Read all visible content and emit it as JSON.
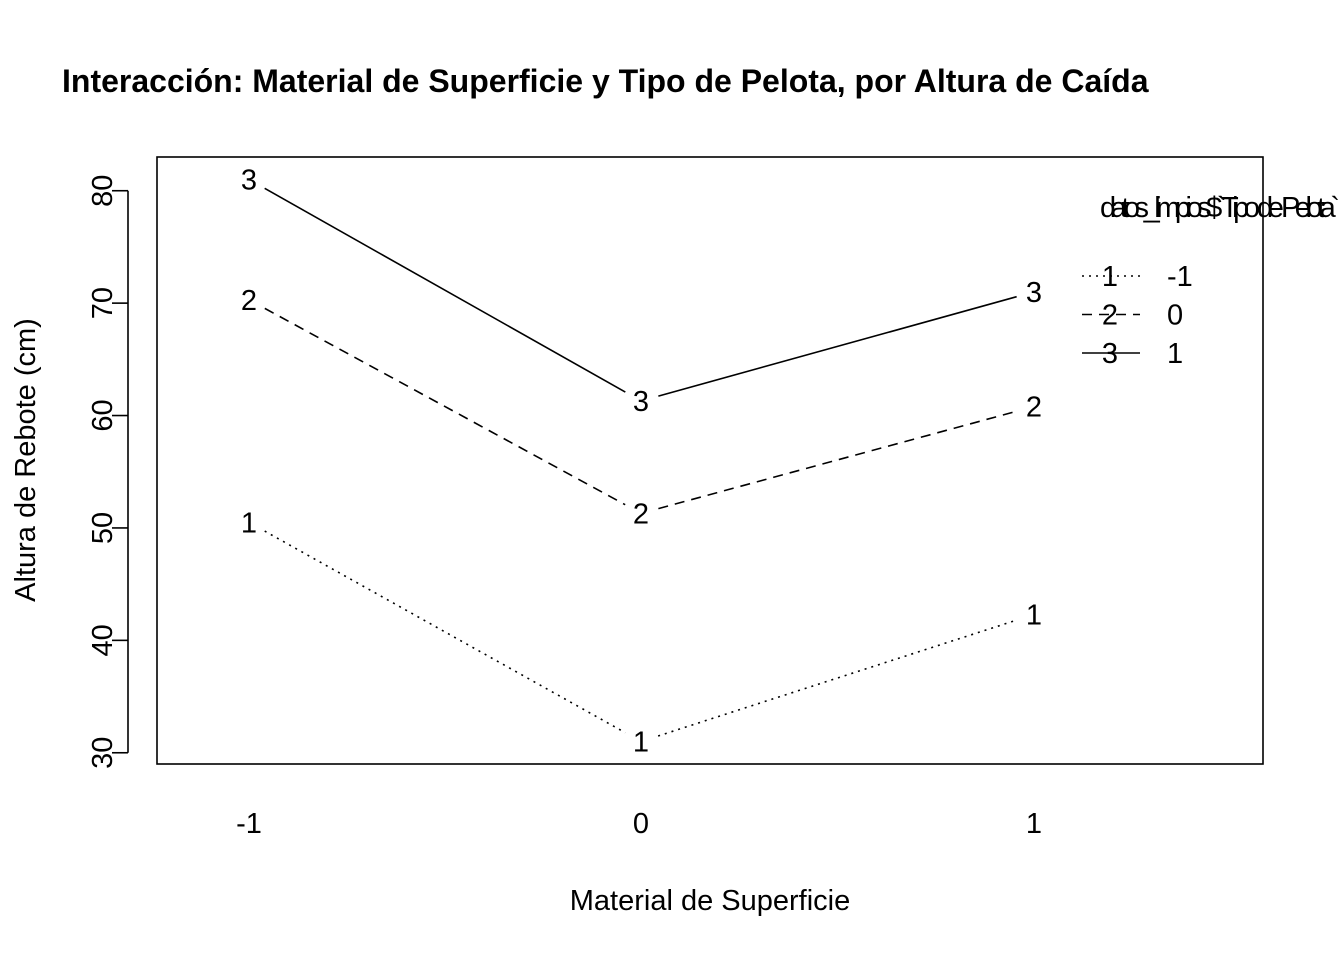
{
  "chart_data": {
    "type": "line",
    "title": "Interacción: Material de Superficie y Tipo de Pelota, por Altura de Caída",
    "xlabel": "Material de Superficie",
    "ylabel": "Altura de Rebote (cm)",
    "categories": [
      "-1",
      "0",
      "1"
    ],
    "ylim": [
      29,
      83
    ],
    "yticks": [
      30,
      40,
      50,
      60,
      70,
      80
    ],
    "ytick_labels": [
      "30",
      "40",
      "50",
      "60",
      "70",
      "80"
    ],
    "grid": false,
    "legend": {
      "title": "datos_limpios$`Tipo de Pelota`",
      "position": "top-right",
      "entries": [
        {
          "symbol": "1",
          "label": "-1",
          "line_style": "dotted"
        },
        {
          "symbol": "2",
          "label": "0",
          "line_style": "dashed"
        },
        {
          "symbol": "3",
          "label": "1",
          "line_style": "solid"
        }
      ]
    },
    "series": [
      {
        "name": "-1",
        "symbol": "1",
        "line_style": "dotted",
        "values": [
          50.5,
          31.0,
          42.3
        ]
      },
      {
        "name": "0",
        "symbol": "2",
        "line_style": "dashed",
        "values": [
          70.3,
          51.3,
          60.8
        ]
      },
      {
        "name": "1",
        "symbol": "3",
        "line_style": "solid",
        "values": [
          81.0,
          61.3,
          71.0
        ]
      }
    ]
  }
}
